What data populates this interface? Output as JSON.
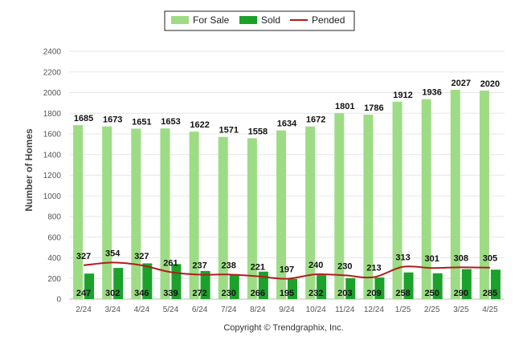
{
  "chart_data": {
    "type": "bar",
    "categories": [
      "2/24",
      "3/24",
      "4/24",
      "5/24",
      "6/24",
      "7/24",
      "8/24",
      "9/24",
      "10/24",
      "11/24",
      "12/24",
      "1/25",
      "2/25",
      "3/25",
      "4/25"
    ],
    "series": [
      {
        "name": "For Sale",
        "type": "bar",
        "color": "#9ddc85",
        "values": [
          1685,
          1673,
          1651,
          1653,
          1622,
          1571,
          1558,
          1634,
          1672,
          1801,
          1786,
          1912,
          1936,
          2027,
          2020
        ]
      },
      {
        "name": "Sold",
        "type": "bar",
        "color": "#1ca12b",
        "values": [
          247,
          302,
          346,
          339,
          272,
          230,
          266,
          195,
          232,
          203,
          209,
          258,
          250,
          290,
          285
        ]
      },
      {
        "name": "Pended",
        "type": "line",
        "color": "#b01c1c",
        "values": [
          327,
          354,
          327,
          261,
          237,
          238,
          221,
          197,
          240,
          230,
          213,
          313,
          301,
          308,
          305
        ]
      }
    ],
    "ylabel": "Number of Homes",
    "xlabel": "",
    "ylim": [
      0,
      2400
    ],
    "yticks": [
      0,
      200,
      400,
      600,
      800,
      1000,
      1200,
      1400,
      1600,
      1800,
      2000,
      2200,
      2400
    ],
    "grid": true,
    "legend": "top-center"
  },
  "footer": {
    "copyright": "Copyright © Trendgraphix, Inc."
  }
}
